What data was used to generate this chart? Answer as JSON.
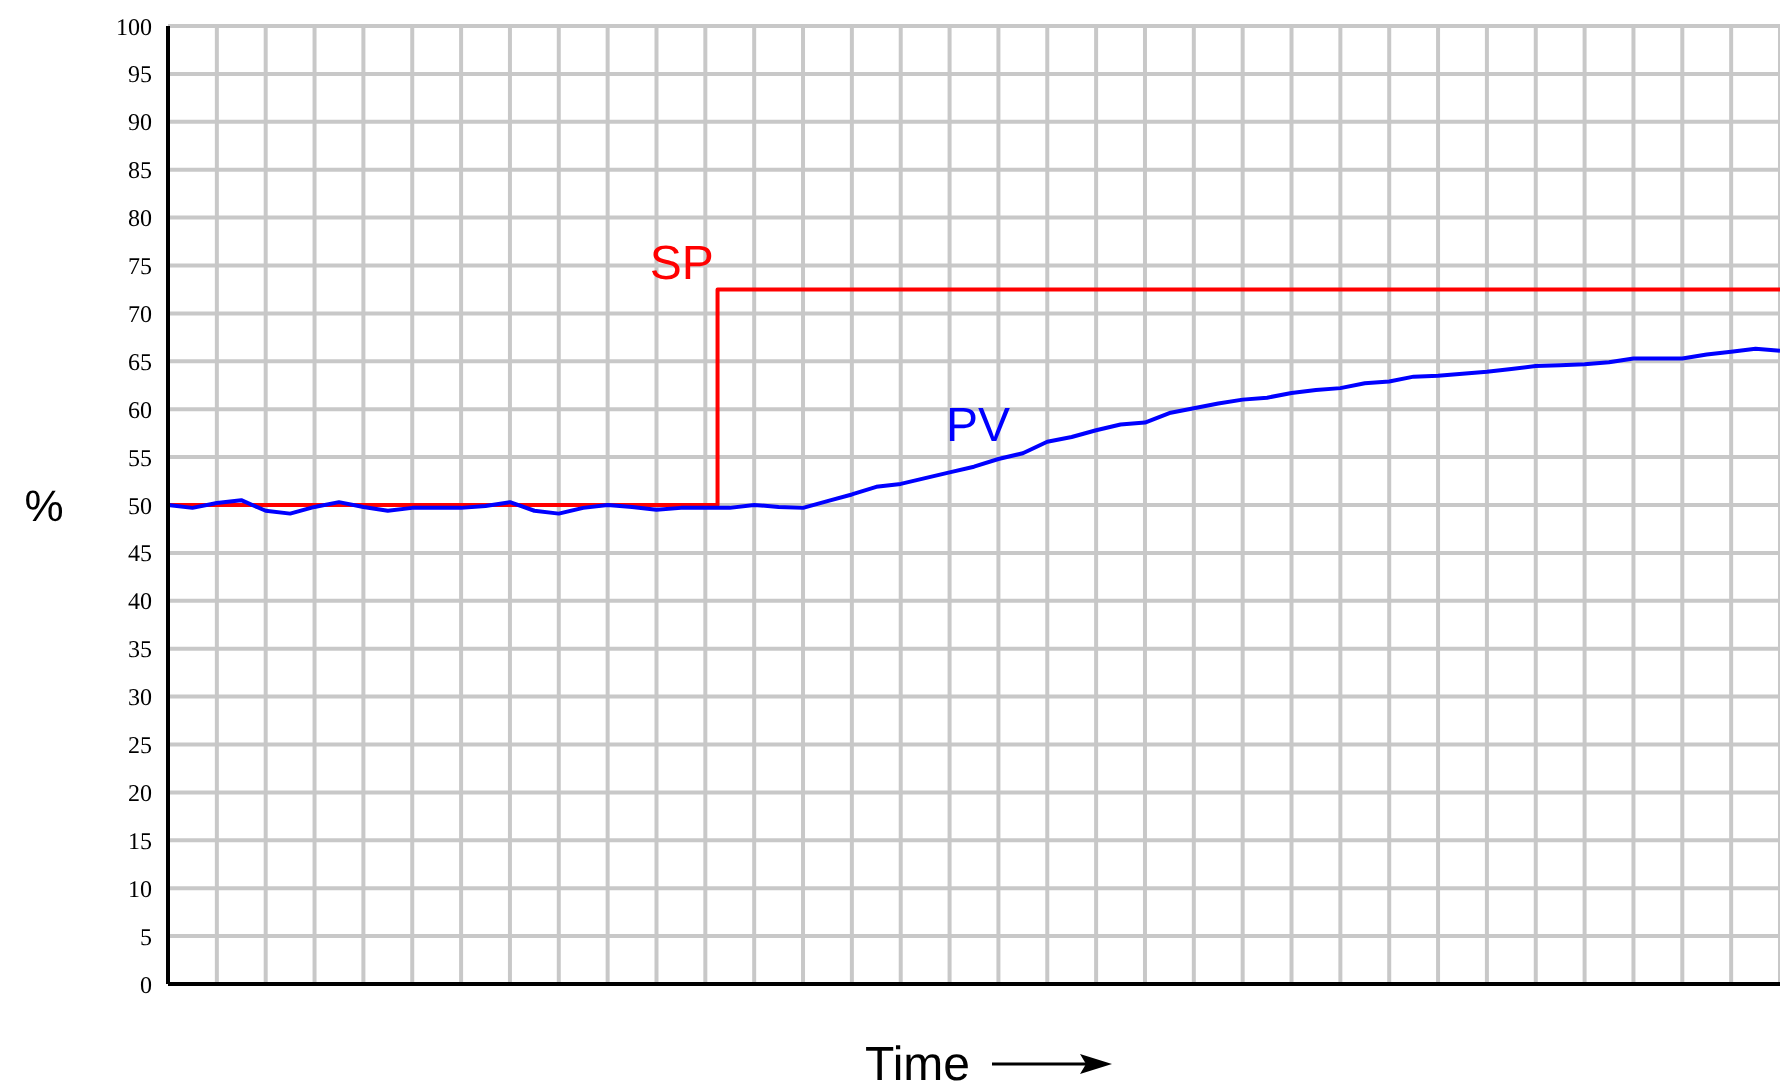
{
  "chart_data": {
    "type": "line",
    "xlabel": "Time",
    "ylabel": "%",
    "ylim": [
      0,
      100
    ],
    "yticks": [
      0,
      5,
      10,
      15,
      20,
      25,
      30,
      35,
      40,
      45,
      50,
      55,
      60,
      65,
      70,
      75,
      80,
      85,
      90,
      95,
      100
    ],
    "grid": true,
    "legend": false,
    "marker": "none",
    "line_style": "solid",
    "categories": [
      null,
      null,
      null,
      null,
      null,
      null,
      null,
      null,
      null,
      null,
      null,
      null,
      null,
      null,
      null,
      null,
      null,
      null,
      null,
      null,
      null,
      null,
      null,
      null,
      null,
      null,
      null,
      null,
      null,
      null,
      null,
      null,
      null,
      null,
      null,
      null,
      null,
      null,
      null,
      null,
      null,
      null,
      null,
      null,
      null,
      null,
      null,
      null,
      null,
      null,
      null,
      null,
      null,
      null,
      null,
      null,
      null,
      null,
      null,
      null,
      null,
      null,
      null,
      null,
      null,
      null,
      null
    ],
    "series": [
      {
        "name": "SP",
        "type": "step",
        "color": "#ff0000",
        "values": [
          50,
          50,
          50,
          50,
          50,
          50,
          50,
          50,
          50,
          50,
          50,
          50,
          50,
          50,
          50,
          50,
          50,
          50,
          50,
          50,
          50,
          50,
          50,
          72.5,
          72.5,
          72.5,
          72.5,
          72.5,
          72.5,
          72.5,
          72.5,
          72.5,
          72.5,
          72.5,
          72.5,
          72.5,
          72.5,
          72.5,
          72.5,
          72.5,
          72.5,
          72.5,
          72.5,
          72.5,
          72.5,
          72.5,
          72.5,
          72.5,
          72.5,
          72.5,
          72.5,
          72.5,
          72.5,
          72.5,
          72.5,
          72.5,
          72.5,
          72.5,
          72.5,
          72.5,
          72.5,
          72.5,
          72.5,
          72.5,
          72.5,
          72.5,
          72.5
        ]
      },
      {
        "name": "PV",
        "type": "line",
        "color": "#0000ff",
        "values": [
          50,
          49.7,
          50.2,
          50.5,
          49.4,
          49.1,
          49.8,
          50.3,
          49.8,
          49.4,
          49.7,
          49.7,
          49.7,
          49.9,
          50.3,
          49.4,
          49.1,
          49.7,
          50,
          49.8,
          49.5,
          49.7,
          49.7,
          49.7,
          50,
          49.8,
          49.7,
          50.4,
          51.1,
          51.9,
          52.2,
          52.8,
          53.4,
          54,
          54.8,
          55.4,
          56.6,
          57.1,
          57.8,
          58.4,
          58.6,
          59.6,
          60.1,
          60.6,
          61,
          61.2,
          61.7,
          62,
          62.2,
          62.7,
          62.9,
          63.4,
          63.5,
          63.7,
          63.9,
          64.2,
          64.5,
          64.6,
          64.7,
          64.9,
          65.3,
          65.3,
          65.3,
          65.7,
          66,
          66.3,
          66.1
        ]
      }
    ]
  }
}
